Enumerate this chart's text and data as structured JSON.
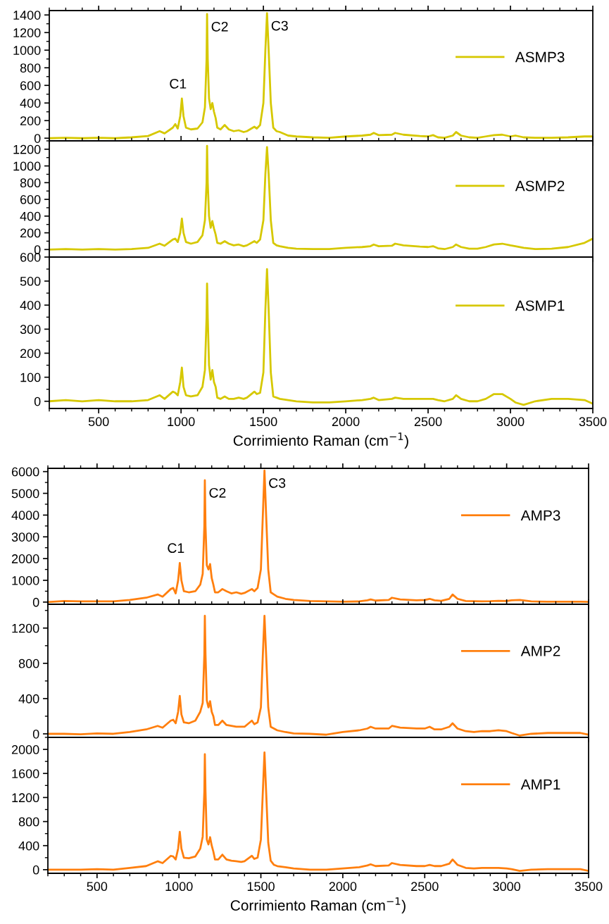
{
  "chart_data": [
    {
      "type": "line",
      "x": [
        200,
        300,
        400,
        500,
        600,
        700,
        800,
        870,
        900,
        950,
        965,
        980,
        995,
        1005,
        1015,
        1030,
        1060,
        1100,
        1130,
        1145,
        1155,
        1158,
        1162,
        1170,
        1180,
        1190,
        1200,
        1210,
        1220,
        1240,
        1265,
        1290,
        1320,
        1350,
        1380,
        1400,
        1445,
        1460,
        1480,
        1500,
        1512,
        1522,
        1532,
        1545,
        1560,
        1580,
        1600,
        1650,
        1700,
        1800,
        1900,
        2000,
        2100,
        2150,
        2170,
        2200,
        2280,
        2300,
        2350,
        2450,
        2500,
        2530,
        2560,
        2600,
        2650,
        2670,
        2700,
        2750,
        2800,
        2850,
        2900,
        2950,
        3000,
        3030,
        3080,
        3150,
        3250,
        3350,
        3450,
        3500
      ],
      "series": [
        {
          "name": "ASMP3",
          "color": "#d6c800",
          "values": [
            0,
            5,
            0,
            5,
            0,
            10,
            25,
            80,
            55,
            120,
            160,
            110,
            250,
            450,
            250,
            120,
            100,
            110,
            180,
            350,
            900,
            1410,
            900,
            450,
            330,
            400,
            300,
            230,
            120,
            100,
            150,
            100,
            80,
            90,
            70,
            80,
            130,
            110,
            150,
            400,
            1000,
            1420,
            1000,
            400,
            120,
            80,
            70,
            30,
            20,
            10,
            5,
            20,
            30,
            40,
            60,
            35,
            40,
            60,
            40,
            25,
            20,
            35,
            10,
            5,
            30,
            70,
            30,
            10,
            5,
            20,
            35,
            40,
            20,
            30,
            10,
            5,
            5,
            10,
            20,
            20
          ]
        }
      ],
      "xlim": [
        200,
        3500
      ],
      "xticks": [
        500,
        1000,
        1500,
        2000,
        2500,
        3000,
        3500
      ],
      "ylim": [
        -30,
        1450
      ],
      "yticks": [
        0,
        200,
        400,
        600,
        800,
        1000,
        1200,
        1400
      ],
      "tick_labels": "y",
      "legend": "top right",
      "annotations": [
        {
          "text": "C1",
          "x": 1005,
          "y": 450
        },
        {
          "text": "C2",
          "x": 1158,
          "y": 1410
        },
        {
          "text": "C3",
          "x": 1522,
          "y": 1420
        }
      ]
    },
    {
      "type": "line",
      "x": [
        200,
        300,
        400,
        500,
        600,
        700,
        800,
        870,
        900,
        950,
        965,
        980,
        995,
        1005,
        1015,
        1030,
        1060,
        1100,
        1130,
        1145,
        1155,
        1158,
        1162,
        1170,
        1180,
        1190,
        1200,
        1210,
        1220,
        1240,
        1265,
        1290,
        1320,
        1350,
        1380,
        1400,
        1445,
        1460,
        1480,
        1500,
        1512,
        1522,
        1532,
        1545,
        1560,
        1580,
        1600,
        1650,
        1700,
        1800,
        1900,
        2000,
        2100,
        2150,
        2170,
        2200,
        2280,
        2300,
        2350,
        2450,
        2500,
        2530,
        2560,
        2600,
        2650,
        2670,
        2700,
        2750,
        2800,
        2850,
        2900,
        2950,
        3000,
        3030,
        3080,
        3150,
        3250,
        3350,
        3450,
        3500
      ],
      "series": [
        {
          "name": "ASMP2",
          "color": "#d6c800",
          "values": [
            0,
            5,
            0,
            5,
            0,
            5,
            20,
            70,
            45,
            120,
            130,
            90,
            200,
            370,
            200,
            90,
            70,
            90,
            170,
            350,
            800,
            1240,
            800,
            400,
            260,
            340,
            250,
            180,
            80,
            70,
            100,
            70,
            50,
            60,
            40,
            50,
            100,
            80,
            120,
            350,
            900,
            1225,
            900,
            350,
            80,
            50,
            40,
            20,
            10,
            5,
            5,
            20,
            30,
            40,
            60,
            40,
            45,
            70,
            50,
            35,
            30,
            40,
            15,
            5,
            30,
            60,
            30,
            10,
            10,
            30,
            60,
            70,
            50,
            40,
            20,
            5,
            10,
            30,
            80,
            130
          ]
        }
      ],
      "xlim": [
        200,
        3500
      ],
      "xticks": [
        500,
        1000,
        1500,
        2000,
        2500,
        3000,
        3500
      ],
      "ylim": [
        -90,
        1300
      ],
      "yticks": [
        0,
        200,
        400,
        600,
        800,
        1000,
        1200
      ],
      "tick_labels": "y",
      "legend": "top right"
    },
    {
      "type": "line",
      "x": [
        200,
        300,
        400,
        500,
        600,
        700,
        800,
        870,
        900,
        950,
        965,
        980,
        995,
        1005,
        1015,
        1030,
        1060,
        1100,
        1130,
        1145,
        1155,
        1158,
        1162,
        1170,
        1180,
        1190,
        1200,
        1210,
        1220,
        1240,
        1265,
        1290,
        1320,
        1350,
        1380,
        1400,
        1445,
        1460,
        1480,
        1500,
        1512,
        1522,
        1532,
        1545,
        1560,
        1580,
        1600,
        1650,
        1700,
        1800,
        1900,
        2000,
        2100,
        2150,
        2170,
        2200,
        2280,
        2300,
        2350,
        2450,
        2500,
        2530,
        2560,
        2600,
        2650,
        2670,
        2700,
        2750,
        2800,
        2850,
        2900,
        2950,
        3000,
        3030,
        3080,
        3150,
        3250,
        3350,
        3450,
        3500
      ],
      "series": [
        {
          "name": "ASMP1",
          "color": "#d6c800",
          "values": [
            0,
            5,
            0,
            5,
            0,
            0,
            5,
            25,
            10,
            40,
            35,
            25,
            80,
            140,
            60,
            25,
            20,
            25,
            60,
            130,
            350,
            490,
            350,
            150,
            90,
            130,
            80,
            60,
            15,
            10,
            20,
            10,
            10,
            15,
            10,
            15,
            40,
            30,
            35,
            120,
            380,
            550,
            380,
            120,
            20,
            15,
            10,
            5,
            0,
            -5,
            -5,
            0,
            5,
            10,
            15,
            5,
            10,
            15,
            10,
            10,
            10,
            10,
            5,
            0,
            10,
            25,
            10,
            0,
            0,
            10,
            30,
            30,
            10,
            -5,
            -15,
            0,
            10,
            10,
            5,
            -10
          ]
        }
      ],
      "xlim": [
        200,
        3500
      ],
      "xticks": [
        500,
        1000,
        1500,
        2000,
        2500,
        3000,
        3500
      ],
      "ylim": [
        -30,
        600
      ],
      "yticks": [
        0,
        100,
        200,
        300,
        400,
        500,
        600
      ],
      "legend": "top right",
      "xlabel": "Corrimiento Raman (cm$^{−1}$)"
    },
    {
      "type": "line",
      "x": [
        200,
        300,
        400,
        500,
        600,
        700,
        800,
        870,
        900,
        950,
        965,
        980,
        995,
        1005,
        1015,
        1030,
        1060,
        1100,
        1130,
        1145,
        1155,
        1158,
        1162,
        1170,
        1180,
        1190,
        1200,
        1210,
        1220,
        1240,
        1265,
        1290,
        1320,
        1350,
        1380,
        1400,
        1445,
        1460,
        1480,
        1500,
        1512,
        1522,
        1532,
        1545,
        1560,
        1580,
        1600,
        1650,
        1700,
        1800,
        1900,
        2000,
        2100,
        2150,
        2170,
        2200,
        2280,
        2300,
        2350,
        2450,
        2500,
        2530,
        2560,
        2600,
        2650,
        2670,
        2700,
        2750,
        2800,
        2850,
        2900,
        2950,
        3000,
        3030,
        3080,
        3150,
        3250,
        3350,
        3450,
        3500
      ],
      "series": [
        {
          "name": "AMP3",
          "color": "#ff7f0e",
          "values": [
            0,
            50,
            30,
            30,
            30,
            100,
            200,
            350,
            250,
            600,
            650,
            400,
            1000,
            1800,
            1000,
            500,
            450,
            500,
            800,
            1300,
            3500,
            5600,
            3500,
            1700,
            1500,
            1750,
            1100,
            800,
            450,
            450,
            600,
            500,
            400,
            450,
            380,
            420,
            600,
            500,
            650,
            1500,
            4000,
            6050,
            4000,
            1500,
            450,
            350,
            250,
            150,
            100,
            50,
            30,
            20,
            30,
            80,
            120,
            70,
            100,
            200,
            120,
            80,
            100,
            150,
            80,
            60,
            150,
            350,
            150,
            50,
            40,
            30,
            40,
            60,
            50,
            80,
            100,
            30,
            20,
            20,
            20,
            10
          ]
        }
      ],
      "xlim": [
        200,
        3500
      ],
      "xticks": [
        500,
        1000,
        1500,
        2000,
        2500,
        3000,
        3500
      ],
      "ylim": [
        -100,
        6150
      ],
      "yticks": [
        0,
        1000,
        2000,
        3000,
        4000,
        5000,
        6000
      ],
      "tick_labels": "y",
      "legend": "top right",
      "annotations": [
        {
          "text": "C1",
          "x": 1005,
          "y": 1800
        },
        {
          "text": "C2",
          "x": 1158,
          "y": 5600
        },
        {
          "text": "C3",
          "x": 1522,
          "y": 6050
        }
      ]
    },
    {
      "type": "line",
      "x": [
        200,
        300,
        400,
        500,
        600,
        700,
        800,
        870,
        900,
        950,
        965,
        980,
        995,
        1005,
        1015,
        1030,
        1060,
        1100,
        1130,
        1145,
        1155,
        1158,
        1162,
        1170,
        1180,
        1190,
        1200,
        1210,
        1220,
        1240,
        1265,
        1290,
        1320,
        1350,
        1380,
        1400,
        1445,
        1460,
        1480,
        1500,
        1512,
        1522,
        1532,
        1545,
        1560,
        1580,
        1600,
        1650,
        1700,
        1800,
        1900,
        2000,
        2100,
        2150,
        2170,
        2200,
        2280,
        2300,
        2350,
        2450,
        2500,
        2530,
        2560,
        2600,
        2650,
        2670,
        2700,
        2750,
        2800,
        2850,
        2900,
        2950,
        3000,
        3030,
        3080,
        3150,
        3250,
        3350,
        3450,
        3500
      ],
      "series": [
        {
          "name": "AMP2",
          "color": "#ff7f0e",
          "values": [
            0,
            0,
            -5,
            5,
            0,
            20,
            50,
            90,
            70,
            150,
            160,
            120,
            250,
            430,
            220,
            130,
            120,
            150,
            250,
            350,
            900,
            1340,
            900,
            380,
            300,
            370,
            250,
            200,
            100,
            100,
            150,
            100,
            90,
            80,
            80,
            80,
            150,
            110,
            130,
            300,
            900,
            1340,
            900,
            300,
            80,
            60,
            40,
            20,
            5,
            0,
            -10,
            20,
            40,
            60,
            80,
            60,
            60,
            90,
            70,
            60,
            60,
            80,
            50,
            50,
            80,
            120,
            60,
            30,
            20,
            30,
            30,
            40,
            30,
            10,
            -20,
            0,
            10,
            10,
            10,
            -10
          ]
        }
      ],
      "xlim": [
        200,
        3500
      ],
      "xticks": [
        500,
        1000,
        1500,
        2000,
        2500,
        3000,
        3500
      ],
      "ylim": [
        -40,
        1470
      ],
      "yticks": [
        0,
        400,
        800,
        1200
      ],
      "tick_labels": "y",
      "legend": "top right"
    },
    {
      "type": "line",
      "x": [
        200,
        300,
        400,
        500,
        600,
        700,
        800,
        870,
        900,
        950,
        965,
        980,
        995,
        1005,
        1015,
        1030,
        1060,
        1100,
        1130,
        1145,
        1155,
        1158,
        1162,
        1170,
        1180,
        1190,
        1200,
        1210,
        1220,
        1240,
        1265,
        1290,
        1320,
        1350,
        1380,
        1400,
        1445,
        1460,
        1480,
        1500,
        1512,
        1522,
        1532,
        1545,
        1560,
        1580,
        1600,
        1650,
        1700,
        1800,
        1900,
        2000,
        2100,
        2150,
        2170,
        2200,
        2280,
        2300,
        2350,
        2450,
        2500,
        2530,
        2560,
        2600,
        2650,
        2670,
        2700,
        2750,
        2800,
        2850,
        2900,
        2950,
        3000,
        3030,
        3080,
        3150,
        3250,
        3350,
        3450,
        3500
      ],
      "series": [
        {
          "name": "AMP1",
          "color": "#ff7f0e",
          "values": [
            0,
            0,
            0,
            10,
            0,
            30,
            60,
            140,
            110,
            230,
            220,
            170,
            350,
            630,
            350,
            200,
            190,
            220,
            350,
            550,
            1300,
            1920,
            1300,
            500,
            420,
            540,
            400,
            300,
            170,
            170,
            250,
            170,
            150,
            140,
            130,
            140,
            230,
            180,
            200,
            500,
            1300,
            1950,
            1300,
            450,
            150,
            80,
            60,
            40,
            20,
            0,
            0,
            20,
            40,
            70,
            90,
            60,
            70,
            110,
            80,
            60,
            60,
            80,
            60,
            60,
            100,
            170,
            80,
            30,
            20,
            30,
            30,
            30,
            20,
            10,
            -20,
            0,
            10,
            10,
            10,
            -20
          ]
        }
      ],
      "xlim": [
        200,
        3500
      ],
      "xticks": [
        500,
        1000,
        1500,
        2000,
        2500,
        3000,
        3500
      ],
      "ylim": [
        -60,
        2200
      ],
      "yticks": [
        0,
        400,
        800,
        1200,
        1600,
        2000
      ],
      "legend": "top right",
      "xlabel": "Corrimiento Raman (cm$^{−1}$)"
    }
  ]
}
